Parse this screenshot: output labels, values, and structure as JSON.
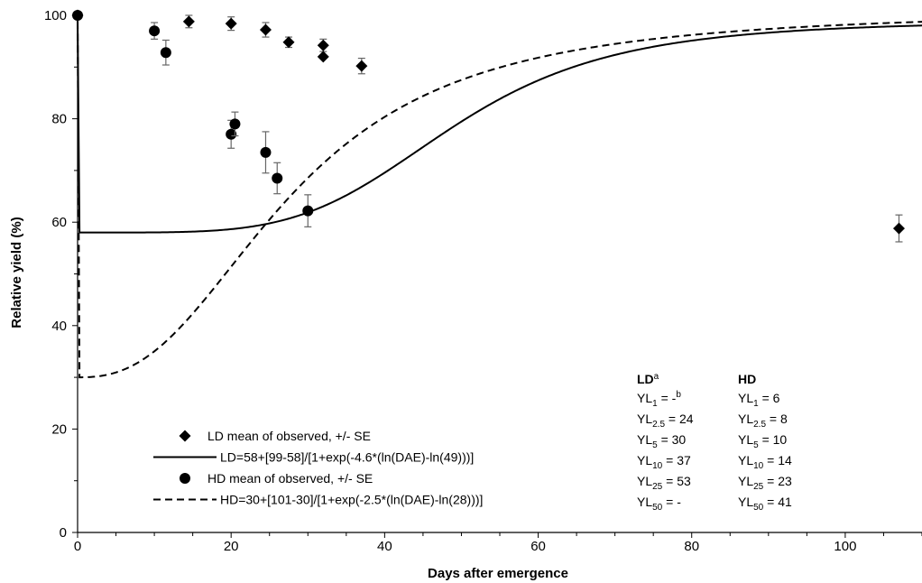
{
  "chart_data": {
    "type": "scatter",
    "title": "",
    "xlabel": "Days after emergence",
    "ylabel": "Relative yield (%)",
    "xlim": [
      0,
      110
    ],
    "ylim": [
      0,
      100
    ],
    "x_ticks": [
      "0",
      "20",
      "40",
      "60",
      "80",
      "100"
    ],
    "y_ticks": [
      "0",
      "20",
      "40",
      "60",
      "80",
      "100"
    ],
    "x_tick_values": [
      0,
      20,
      40,
      60,
      80,
      100
    ],
    "y_tick_values": [
      0,
      20,
      40,
      60,
      80,
      100
    ],
    "x_minor_step": 5,
    "grid": false,
    "legend_position": "bottom-left",
    "series": [
      {
        "name": "LD mean of observed, +/- SE",
        "marker": "diamond",
        "points": [
          {
            "x": 0,
            "y": 100,
            "se": 0
          },
          {
            "x": 14.5,
            "y": 98.8,
            "se": 1.2
          },
          {
            "x": 20,
            "y": 98.4,
            "se": 1.3
          },
          {
            "x": 24.5,
            "y": 97.2,
            "se": 1.4
          },
          {
            "x": 27.5,
            "y": 94.8,
            "se": 1.0
          },
          {
            "x": 32,
            "y": 94.2,
            "se": 1.2
          },
          {
            "x": 32,
            "y": 92.0,
            "se": 0
          },
          {
            "x": 37,
            "y": 90.2,
            "se": 1.5
          },
          {
            "x": 107,
            "y": 58.8,
            "se": 2.6
          }
        ]
      },
      {
        "name": "LD=58+[99-58]/[1+exp(-4.6*(ln(DAE)-ln(49)))]",
        "line_style": "solid",
        "model": {
          "lower": 58,
          "upper": 99,
          "slope": 4.6,
          "x50": 49
        }
      },
      {
        "name": "HD mean of observed, +/- SE",
        "marker": "circle",
        "points": [
          {
            "x": 0,
            "y": 100,
            "se": 0
          },
          {
            "x": 10,
            "y": 97.0,
            "se": 1.6
          },
          {
            "x": 11.5,
            "y": 92.8,
            "se": 2.4
          },
          {
            "x": 20,
            "y": 77.0,
            "se": 2.7
          },
          {
            "x": 20.5,
            "y": 79.0,
            "se": 2.3
          },
          {
            "x": 24.5,
            "y": 73.5,
            "se": 4.0
          },
          {
            "x": 26,
            "y": 68.5,
            "se": 3.0
          },
          {
            "x": 30,
            "y": 62.2,
            "se": 3.1
          }
        ]
      },
      {
        "name": "HD=30+[101-30]/[1+exp(-2.5*(ln(DAE)-ln(28)))]",
        "line_style": "dashed",
        "model": {
          "lower": 30,
          "upper": 101,
          "slope": 2.5,
          "x50": 28
        }
      }
    ],
    "annotation": {
      "ld_title": "LD",
      "ld_title_sup": "a",
      "hd_title": "HD",
      "rows": [
        {
          "yl": "YL",
          "sub": "1",
          "ld": " = -",
          "ld_sup": "b",
          "hd": " = 6"
        },
        {
          "yl": "YL",
          "sub": "2.5",
          "ld": " = 24",
          "ld_sup": "",
          "hd": " = 8"
        },
        {
          "yl": "YL",
          "sub": "5",
          "ld": " = 30",
          "ld_sup": "",
          "hd": " = 10"
        },
        {
          "yl": "YL",
          "sub": "10",
          "ld": " = 37",
          "ld_sup": "",
          "hd": " = 14"
        },
        {
          "yl": "YL",
          "sub": "25",
          "ld": " = 53",
          "ld_sup": "",
          "hd": " = 23"
        },
        {
          "yl": "YL",
          "sub": "50",
          "ld": " = -",
          "ld_sup": "",
          "hd": " = 41"
        }
      ]
    }
  }
}
